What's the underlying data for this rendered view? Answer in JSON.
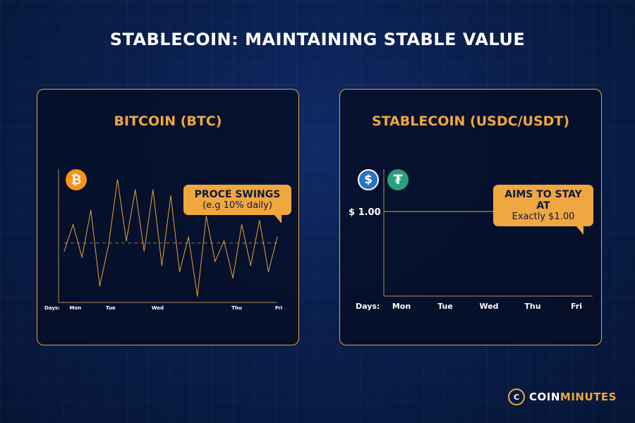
{
  "title": "STABLECOIN: MAINTAINING STABLE VALUE",
  "colors": {
    "accent": "#f0a740",
    "line": "#e8a13c",
    "background": "#0a1f4d"
  },
  "chart_data": [
    {
      "type": "line",
      "panel_title": "BITCOIN (BTC)",
      "icon": "bitcoin-icon",
      "x_prefix": "Days:",
      "categories": [
        "Mon",
        "Tue",
        "Wed",
        "Thu",
        "Fri"
      ],
      "x": [
        0,
        0.5,
        1,
        1.5,
        2,
        2.5,
        3,
        3.5,
        4,
        4.5,
        5,
        5.5,
        6,
        6.5,
        7,
        7.5,
        8,
        8.5,
        9,
        9.5,
        10,
        10.5,
        11,
        11.5,
        12
      ],
      "values": [
        55,
        68,
        52,
        75,
        38,
        58,
        90,
        60,
        85,
        55,
        85,
        48,
        82,
        45,
        62,
        33,
        72,
        50,
        60,
        42,
        68,
        48,
        70,
        45,
        62
      ],
      "reference_value": 59,
      "ylim": [
        30,
        95
      ],
      "callout": {
        "line1": "PROCE SWINGS",
        "line2": "(e.g 10% daily)"
      }
    },
    {
      "type": "line",
      "panel_title": "STABLECOIN (USDC/USDT)",
      "icons": [
        "usdc-icon",
        "tether-icon"
      ],
      "x_prefix": "Days:",
      "categories": [
        "Mon",
        "Tue",
        "Wed",
        "Thu",
        "Fri"
      ],
      "values": [
        1.0,
        1.0,
        1.0,
        1.0,
        1.0
      ],
      "y_tick_label": "$ 1.00",
      "callout": {
        "line1": "AIMS TO STAY AT",
        "line2": "Exactly $1.00"
      }
    }
  ],
  "logo": {
    "part1": "COIN",
    "part2": "MINUTES"
  }
}
